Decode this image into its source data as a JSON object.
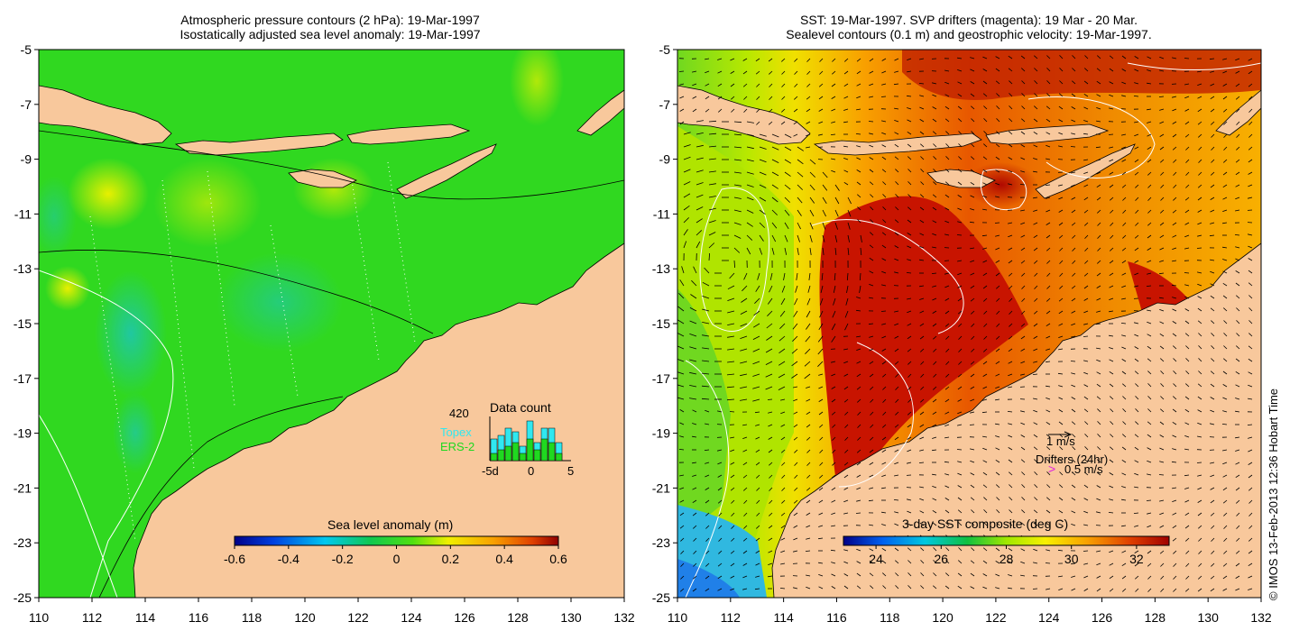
{
  "left_panel": {
    "title_line1": "Atmospheric pressure contours (2 hPa): 19-Mar-1997",
    "title_line2": "Isostatically adjusted sea level anomaly: 19-Mar-1997",
    "colorbar": {
      "label": "Sea level anomaly (m)",
      "ticks": [
        "-0.6",
        "-0.4",
        "-0.2",
        "0",
        "0.2",
        "0.4",
        "0.6"
      ],
      "range": [
        -0.6,
        0.6
      ]
    },
    "data_count": {
      "title": "Data count",
      "max_label": "420",
      "topex_label": "Topex",
      "ers2_label": "ERS-2",
      "x_ticks": [
        "-5d",
        "0",
        "5"
      ],
      "days": [
        -5,
        -4,
        -3,
        -2,
        -1,
        0,
        1,
        2,
        3,
        4,
        5
      ],
      "topex": [
        6,
        7,
        9,
        8,
        4,
        11,
        5,
        9,
        9,
        5,
        0
      ],
      "ers2": [
        2,
        3,
        4,
        5,
        2,
        6,
        3,
        6,
        5,
        2,
        0
      ]
    }
  },
  "right_panel": {
    "title_line1": "SST: 19-Mar-1997. SVP drifters (magenta): 19 Mar - 20 Mar.",
    "title_line2": "Sealevel contours (0.1 m) and geostrophic velocity: 19-Mar-1997.",
    "colorbar": {
      "label": "3-day SST composite (deg C)",
      "ticks": [
        "24",
        "26",
        "28",
        "30",
        "32"
      ],
      "range": [
        23,
        33
      ]
    },
    "legend": {
      "velocity_label": "1 m/s",
      "drifters_label": "Drifters (24hr)",
      "drifter_speed_label": "0.5 m/s",
      "drifter_symbol": ">",
      "drifter_color": "#e020e0"
    }
  },
  "axes": {
    "lon_ticks": [
      "110",
      "112",
      "114",
      "116",
      "118",
      "120",
      "122",
      "124",
      "126",
      "128",
      "130",
      "132"
    ],
    "lat_ticks": [
      "-5",
      "-7",
      "-9",
      "-11",
      "-13",
      "-15",
      "-17",
      "-19",
      "-21",
      "-23",
      "-25"
    ],
    "lon_range": [
      110,
      132
    ],
    "lat_range": [
      -25,
      -5
    ]
  },
  "credit": "© IMOS 13-Feb-2013 12:36 Hobart Time",
  "colors": {
    "land": "#f8c89c",
    "ocean_left": "#30d820",
    "sst_hot": "#c81400",
    "sst_warm": "#f08c00",
    "topex": "#30e8f0",
    "ers2": "#20d820"
  }
}
